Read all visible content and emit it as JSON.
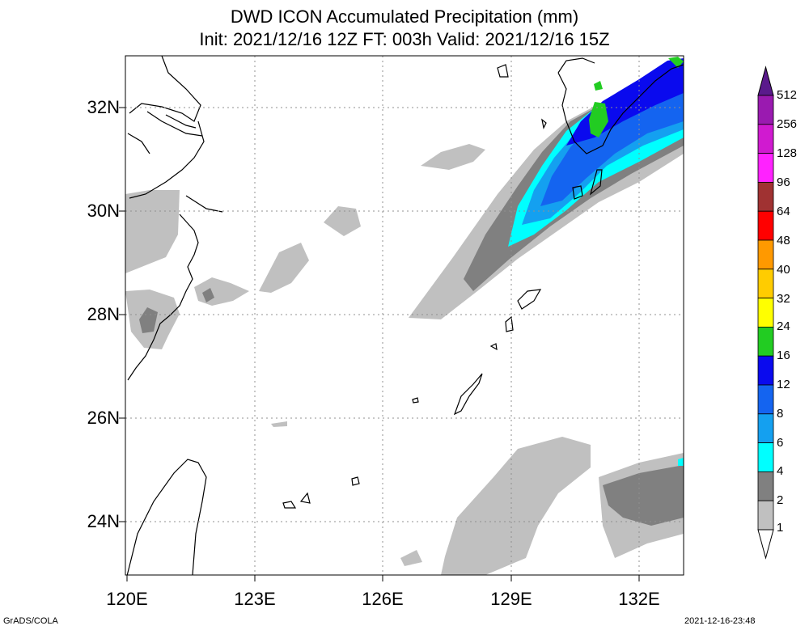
{
  "title": {
    "line1": "DWD ICON Accumulated Precipitation (mm)",
    "line2": "Init: 2021/12/16 12Z  FT: 003h  Valid: 2021/12/16 15Z"
  },
  "axes": {
    "lat_labels": [
      "32N",
      "30N",
      "28N",
      "26N",
      "24N"
    ],
    "lon_labels": [
      "120E",
      "123E",
      "126E",
      "129E",
      "132E"
    ]
  },
  "colorbar": {
    "levels": [
      "512",
      "256",
      "128",
      "96",
      "64",
      "48",
      "40",
      "32",
      "24",
      "16",
      "12",
      "8",
      "6",
      "4",
      "2",
      "1"
    ],
    "colors": {
      "c512": "#5a1a8c",
      "c256": "#9a1ab0",
      "c128": "#d01ad0",
      "c96": "#ff22ff",
      "c64": "#a03232",
      "c48": "#ff0000",
      "c40": "#ff9900",
      "c32": "#ffcc00",
      "c24": "#ffff00",
      "c16": "#22cc22",
      "c12": "#0a0aee",
      "c8": "#1464f0",
      "c6": "#14a0f0",
      "c4": "#00ffff",
      "c2": "#808080",
      "c1": "#c0c0c0"
    }
  },
  "footer": {
    "left": "GrADS/COLA",
    "right": "2021-12-16-23:48"
  }
}
